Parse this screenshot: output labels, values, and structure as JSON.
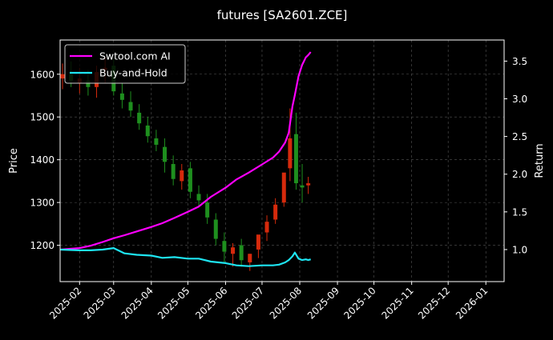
{
  "chart_data": {
    "type": "line",
    "title": "futures [SA2601.ZCE]",
    "xlabel": "",
    "ylabel_left": "Price",
    "ylabel_right": "Return",
    "x_ticks": [
      "2025-02",
      "2025-03",
      "2025-04",
      "2025-05",
      "2025-06",
      "2025-07",
      "2025-08",
      "2025-09",
      "2025-10",
      "2025-11",
      "2025-12",
      "2026-01"
    ],
    "x_range": [
      "2025-01-16",
      "2026-01-16"
    ],
    "y_left_ticks": [
      1200,
      1300,
      1400,
      1500,
      1600
    ],
    "y_left_range": [
      1115,
      1680
    ],
    "y_right_ticks": [
      1.0,
      1.5,
      2.0,
      2.5,
      3.0,
      3.5
    ],
    "y_right_range": [
      0.575,
      3.78
    ],
    "grid": true,
    "legend_position": "top-left",
    "colors": {
      "background": "#000000",
      "grid": "#555555",
      "up_candle": "#d62a0c",
      "down_candle": "#1e8f1e"
    },
    "series": [
      {
        "name": "Swtool.com AI",
        "axis": "right",
        "color": "#ff00ff",
        "x": [
          "2025-01-16",
          "2025-02-01",
          "2025-02-10",
          "2025-02-20",
          "2025-03-01",
          "2025-03-10",
          "2025-03-20",
          "2025-04-01",
          "2025-04-10",
          "2025-04-20",
          "2025-05-01",
          "2025-05-10",
          "2025-05-20",
          "2025-06-01",
          "2025-06-10",
          "2025-06-20",
          "2025-07-01",
          "2025-07-10",
          "2025-07-15",
          "2025-07-20",
          "2025-07-23",
          "2025-07-26",
          "2025-07-28",
          "2025-07-31",
          "2025-08-03",
          "2025-08-06",
          "2025-08-08",
          "2025-08-10"
        ],
        "values": [
          1.0,
          1.02,
          1.05,
          1.1,
          1.15,
          1.19,
          1.24,
          1.3,
          1.35,
          1.42,
          1.5,
          1.57,
          1.7,
          1.82,
          1.93,
          2.02,
          2.13,
          2.22,
          2.3,
          2.42,
          2.55,
          2.9,
          3.05,
          3.3,
          3.45,
          3.55,
          3.58,
          3.62
        ]
      },
      {
        "name": "Buy-and-Hold",
        "axis": "right",
        "color": "#1ee5f2",
        "x": [
          "2025-01-16",
          "2025-02-01",
          "2025-02-10",
          "2025-02-20",
          "2025-03-01",
          "2025-03-10",
          "2025-03-20",
          "2025-04-01",
          "2025-04-10",
          "2025-04-20",
          "2025-05-01",
          "2025-05-10",
          "2025-05-20",
          "2025-06-01",
          "2025-06-10",
          "2025-06-20",
          "2025-07-01",
          "2025-07-10",
          "2025-07-15",
          "2025-07-20",
          "2025-07-23",
          "2025-07-26",
          "2025-07-28",
          "2025-07-31",
          "2025-08-03",
          "2025-08-06",
          "2025-08-08",
          "2025-08-10"
        ],
        "values": [
          1.0,
          0.99,
          0.99,
          1.0,
          1.02,
          0.95,
          0.93,
          0.92,
          0.89,
          0.9,
          0.88,
          0.88,
          0.84,
          0.82,
          0.79,
          0.78,
          0.79,
          0.79,
          0.8,
          0.83,
          0.86,
          0.91,
          0.96,
          0.88,
          0.86,
          0.87,
          0.86,
          0.87
        ]
      }
    ],
    "candles": {
      "axis": "left",
      "x": [
        "2025-01-18",
        "2025-01-25",
        "2025-02-01",
        "2025-02-08",
        "2025-02-15",
        "2025-02-22",
        "2025-03-01",
        "2025-03-08",
        "2025-03-15",
        "2025-03-22",
        "2025-03-29",
        "2025-04-05",
        "2025-04-12",
        "2025-04-19",
        "2025-04-26",
        "2025-05-03",
        "2025-05-10",
        "2025-05-17",
        "2025-05-24",
        "2025-05-31",
        "2025-06-07",
        "2025-06-14",
        "2025-06-21",
        "2025-06-28",
        "2025-07-05",
        "2025-07-12",
        "2025-07-19",
        "2025-07-24",
        "2025-07-29",
        "2025-08-03",
        "2025-08-08"
      ],
      "open": [
        1590,
        1600,
        1580,
        1585,
        1570,
        1610,
        1620,
        1555,
        1535,
        1510,
        1480,
        1450,
        1430,
        1390,
        1350,
        1380,
        1320,
        1300,
        1260,
        1210,
        1180,
        1200,
        1160,
        1190,
        1230,
        1260,
        1300,
        1380,
        1460,
        1340,
        1340
      ],
      "high": [
        1625,
        1630,
        1615,
        1610,
        1620,
        1640,
        1640,
        1580,
        1560,
        1530,
        1500,
        1470,
        1450,
        1410,
        1390,
        1395,
        1340,
        1320,
        1275,
        1230,
        1205,
        1215,
        1180,
        1220,
        1270,
        1310,
        1360,
        1520,
        1510,
        1390,
        1360
      ],
      "low": [
        1565,
        1570,
        1555,
        1550,
        1545,
        1580,
        1550,
        1520,
        1500,
        1470,
        1440,
        1420,
        1370,
        1340,
        1330,
        1310,
        1290,
        1250,
        1200,
        1160,
        1150,
        1150,
        1140,
        1170,
        1210,
        1250,
        1290,
        1350,
        1330,
        1300,
        1320
      ],
      "close": [
        1600,
        1585,
        1590,
        1570,
        1605,
        1615,
        1560,
        1540,
        1515,
        1485,
        1455,
        1435,
        1395,
        1355,
        1375,
        1325,
        1305,
        1265,
        1215,
        1185,
        1195,
        1165,
        1180,
        1225,
        1255,
        1295,
        1370,
        1450,
        1345,
        1335,
        1345
      ]
    }
  }
}
